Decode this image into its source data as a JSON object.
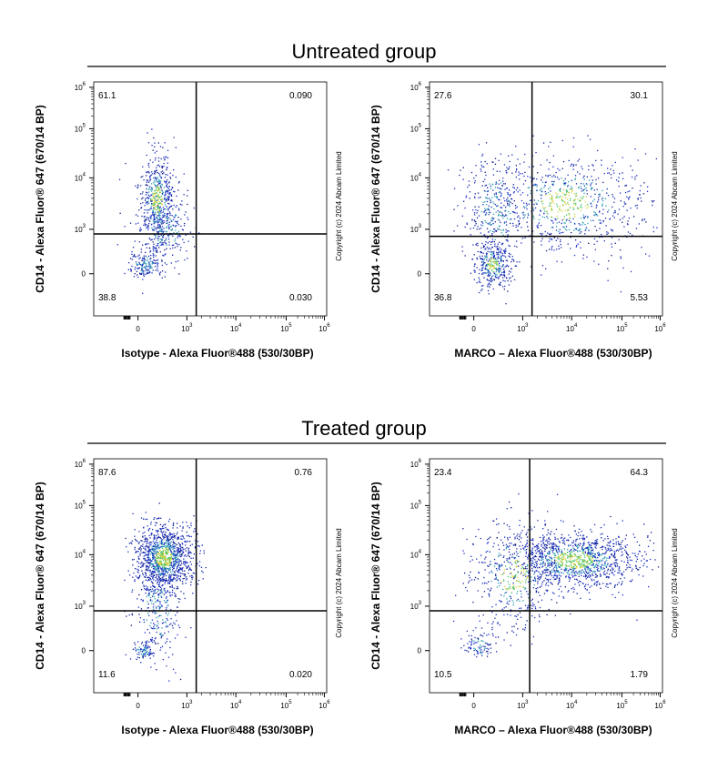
{
  "groups": [
    {
      "title": "Untreated group",
      "panels": [
        {
          "y_label": "CD14 - Alexa Fluor® 647 (670/14 BP)",
          "x_label": "Isotype - Alexa Fluor®488 (530/30BP)",
          "quadrants": [
            "61.1",
            "0.090",
            "38.8",
            "0.030"
          ],
          "copyright": "Copyright (c) 2024 Abcam Limited"
        },
        {
          "y_label": "CD14 - Alexa Fluor® 647 (670/14 BP)",
          "x_label": "MARCO – Alexa Fluor®488 (530/30BP)",
          "quadrants": [
            "27.6",
            "30.1",
            "36.8",
            "5.53"
          ],
          "copyright": "Copyright (c) 2024 Abcam Limited"
        }
      ]
    },
    {
      "title": "Treated group",
      "panels": [
        {
          "y_label": "CD14 - Alexa Fluor® 647 (670/14 BP)",
          "x_label": "Isotype - Alexa Fluor®488 (530/30BP)",
          "quadrants": [
            "87.6",
            "0.76",
            "11.6",
            "0.020"
          ],
          "copyright": "Copyright (c) 2024 Abcam Limited"
        },
        {
          "y_label": "CD14 - Alexa Fluor® 647 (670/14 BP)",
          "x_label": "MARCO – Alexa Fluor®488 (530/30BP)",
          "quadrants": [
            "23.4",
            "64.3",
            "10.5",
            "1.79"
          ],
          "copyright": "Copyright (c) 2024 Abcam Limited"
        }
      ]
    }
  ],
  "x_ticks": [
    "0",
    {
      "base": "10",
      "sup": "3"
    },
    {
      "base": "10",
      "sup": "4"
    },
    {
      "base": "10",
      "sup": "5"
    },
    {
      "base": "10",
      "sup": "6"
    }
  ],
  "y_ticks": [
    "0",
    {
      "base": "10",
      "sup": "3"
    },
    {
      "base": "10",
      "sup": "4"
    },
    {
      "base": "10",
      "sup": "5"
    },
    {
      "base": "10",
      "sup": "6"
    }
  ]
}
